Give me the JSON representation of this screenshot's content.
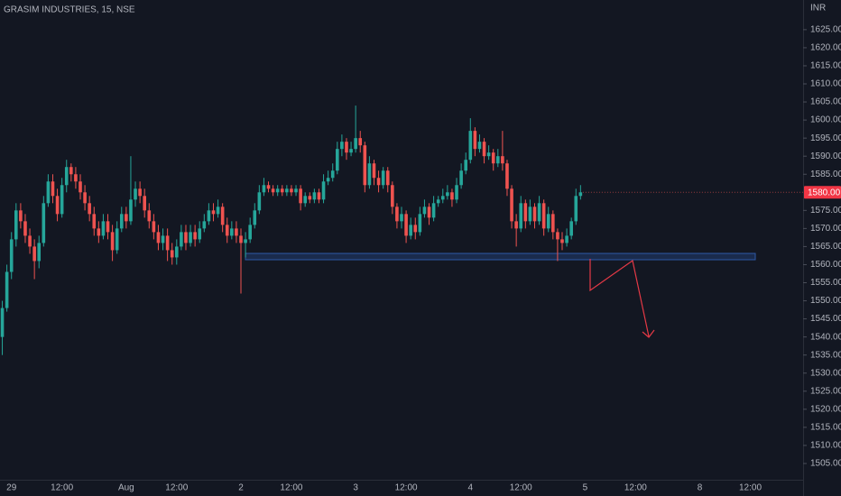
{
  "chart_data": {
    "type": "candlestick",
    "title": "GRASIM INDUSTRIES, 15, NSE",
    "currency": "INR",
    "up_color": "#26a69a",
    "down_color": "#ef5350",
    "last_price": {
      "value": 1580,
      "label": "1580.00"
    },
    "categories": [
      null,
      null,
      "29",
      null,
      null,
      null,
      null,
      null,
      null,
      null,
      null,
      null,
      null,
      "12:00",
      null,
      null,
      null,
      null,
      null,
      null,
      null,
      null,
      null,
      null,
      null,
      null,
      null,
      "Aug",
      null,
      null,
      null,
      null,
      null,
      null,
      null,
      null,
      null,
      null,
      "12:00",
      null,
      null,
      null,
      null,
      null,
      null,
      null,
      null,
      null,
      null,
      null,
      null,
      null,
      "2",
      null,
      null,
      null,
      null,
      null,
      null,
      null,
      null,
      null,
      null,
      "12:00",
      null,
      null,
      null,
      null,
      null,
      null,
      null,
      null,
      null,
      null,
      null,
      null,
      null,
      "3",
      null,
      null,
      null,
      null,
      null,
      null,
      null,
      null,
      null,
      null,
      "12:00",
      null,
      null,
      null,
      null,
      null,
      null,
      null,
      null,
      null,
      null,
      null,
      null,
      null,
      "4",
      null,
      null,
      null,
      null,
      null,
      null,
      null,
      null,
      null,
      null,
      "12:00",
      null,
      null,
      null,
      null,
      null,
      null,
      null,
      null,
      null,
      null,
      null,
      null,
      null,
      "5",
      null,
      null,
      null,
      null,
      null,
      null,
      null,
      null,
      null,
      null,
      "12:00",
      null,
      null,
      null,
      null,
      null,
      null,
      null,
      null,
      null,
      null,
      null,
      null,
      null,
      "8",
      null,
      null,
      null,
      null,
      null,
      null,
      null,
      null,
      null,
      null,
      "12:00",
      null,
      null,
      null,
      null,
      null,
      null,
      null,
      null,
      null,
      null,
      null
    ],
    "open": [
      1540,
      1548,
      1558,
      1567,
      1575,
      1572,
      1568,
      1565,
      1561,
      1566,
      1577,
      1583,
      1579,
      1574,
      1582,
      1587,
      1585,
      1583,
      1580,
      1577,
      1574,
      1570,
      1568,
      1572,
      1569,
      1564,
      1570,
      1574,
      1572,
      1578,
      1581,
      1579,
      1575,
      1572,
      1569,
      1566,
      1568,
      1564,
      1562,
      1565,
      1569,
      1566,
      1569,
      1567,
      1570,
      1572,
      1575,
      1574,
      1576,
      1571,
      1568,
      1570,
      1568,
      1566,
      1567,
      1571,
      1575,
      1580,
      1582,
      1581,
      1580,
      1581,
      1580,
      1581,
      1580,
      1581,
      1577,
      1579,
      1578,
      1580,
      1578,
      1583,
      1584,
      1586,
      1592,
      1594,
      1591,
      1592,
      1595,
      1593,
      1582,
      1588,
      1584,
      1582,
      1586,
      1582,
      1576,
      1572,
      1574,
      1568,
      1571,
      1569,
      1574,
      1576,
      1573,
      1577,
      1578,
      1579,
      1580,
      1578,
      1582,
      1586,
      1589,
      1597,
      1592,
      1594,
      1590,
      1591,
      1588,
      1590,
      1588,
      1581,
      1572,
      1570,
      1577,
      1572,
      1576,
      1572,
      1577,
      1570,
      1574,
      1569,
      1567,
      1566,
      1568,
      1572,
      1579,
      null,
      null,
      null,
      null,
      null,
      null,
      null,
      null,
      null,
      null,
      null,
      null,
      null,
      null,
      null,
      null,
      null,
      null,
      null,
      null,
      null,
      null,
      null,
      null,
      null,
      null,
      null,
      null,
      null,
      null,
      null,
      null,
      null,
      null,
      null,
      null,
      null,
      null,
      null,
      null,
      null,
      null,
      null,
      null,
      null,
      null,
      null,
      null
    ],
    "high": [
      1550,
      1560,
      1569,
      1577,
      1577,
      1574,
      1570,
      1567,
      1568,
      1579,
      1585,
      1585,
      1581,
      1584,
      1589,
      1588,
      1587,
      1585,
      1582,
      1579,
      1576,
      1572,
      1574,
      1574,
      1571,
      1572,
      1576,
      1576,
      1590,
      1583,
      1583,
      1581,
      1577,
      1574,
      1571,
      1570,
      1570,
      1566,
      1567,
      1571,
      1571,
      1571,
      1571,
      1572,
      1574,
      1577,
      1577,
      1578,
      1577,
      1573,
      1572,
      1572,
      1570,
      1569,
      1573,
      1577,
      1582,
      1584,
      1583,
      1582,
      1582,
      1582,
      1582,
      1582,
      1582,
      1582,
      1580,
      1580,
      1581,
      1581,
      1585,
      1586,
      1588,
      1594,
      1596,
      1595,
      1594,
      1604,
      1597,
      1594,
      1590,
      1589,
      1586,
      1587,
      1587,
      1583,
      1577,
      1576,
      1575,
      1573,
      1573,
      1576,
      1578,
      1577,
      1579,
      1579,
      1581,
      1582,
      1581,
      1584,
      1588,
      1591,
      1600.5,
      1598,
      1596,
      1595,
      1593,
      1592,
      1592,
      1597,
      1589,
      1582,
      1574,
      1579,
      1578,
      1578,
      1577,
      1579,
      1578,
      1576,
      1575,
      1570,
      1569,
      1570,
      1573,
      1581,
      1582,
      null,
      null,
      null,
      null,
      null,
      null,
      null,
      null,
      null,
      null,
      null,
      null,
      null,
      null,
      null,
      null,
      null,
      null,
      null,
      null,
      null,
      null,
      null,
      null,
      null,
      null,
      null,
      null,
      null,
      null,
      null,
      null,
      null,
      null,
      null,
      null,
      null,
      null,
      null,
      null,
      null,
      null,
      null,
      null,
      null,
      null,
      null,
      null
    ],
    "low": [
      1535,
      1547,
      1556,
      1565,
      1570,
      1566,
      1563,
      1556,
      1559,
      1565,
      1576,
      1577,
      1572,
      1573,
      1580,
      1583,
      1581,
      1578,
      1575,
      1572,
      1568,
      1566,
      1567,
      1567,
      1561,
      1563,
      1569,
      1570,
      1571,
      1576,
      1577,
      1573,
      1570,
      1567,
      1564,
      1564,
      1561,
      1560,
      1560,
      1564,
      1564,
      1565,
      1565,
      1566,
      1569,
      1571,
      1572,
      1573,
      1569,
      1566,
      1567,
      1566,
      1552,
      1562,
      1566,
      1570,
      1574,
      1579,
      1580,
      1579,
      1579,
      1579,
      1579,
      1579,
      1579,
      1575,
      1576,
      1577,
      1577,
      1577,
      1577,
      1582,
      1583,
      1585,
      1590,
      1589,
      1590,
      1591,
      1591,
      1580,
      1581,
      1582,
      1580,
      1581,
      1580,
      1574,
      1570,
      1570,
      1566,
      1567,
      1567,
      1568,
      1573,
      1571,
      1572,
      1576,
      1577,
      1578,
      1576,
      1577,
      1581,
      1585,
      1588,
      1590,
      1591,
      1588,
      1589,
      1586,
      1587,
      1586,
      1579,
      1570,
      1565,
      1569,
      1570,
      1571,
      1570,
      1571,
      1568,
      1569,
      1567,
      1561,
      1564,
      1565,
      1567,
      1571,
      1578,
      null,
      null,
      null,
      null,
      null,
      null,
      null,
      null,
      null,
      null,
      null,
      null,
      null,
      null,
      null,
      null,
      null,
      null,
      null,
      null,
      null,
      null,
      null,
      null,
      null,
      null,
      null,
      null,
      null,
      null,
      null,
      null,
      null,
      null,
      null,
      null,
      null,
      null,
      null,
      null,
      null,
      null,
      null,
      null,
      null,
      null,
      null,
      null
    ],
    "close": [
      1548,
      1558,
      1567,
      1575,
      1572,
      1568,
      1565,
      1561,
      1566,
      1577,
      1583,
      1579,
      1574,
      1582,
      1587,
      1585,
      1583,
      1580,
      1577,
      1574,
      1570,
      1568,
      1572,
      1569,
      1564,
      1570,
      1574,
      1572,
      1578,
      1581,
      1579,
      1575,
      1572,
      1569,
      1566,
      1568,
      1564,
      1562,
      1565,
      1569,
      1566,
      1569,
      1567,
      1570,
      1572,
      1575,
      1574,
      1576,
      1571,
      1568,
      1570,
      1568,
      1566,
      1567,
      1571,
      1575,
      1580,
      1582,
      1581,
      1580,
      1581,
      1580,
      1581,
      1580,
      1581,
      1577,
      1579,
      1578,
      1580,
      1578,
      1583,
      1584,
      1586,
      1592,
      1594,
      1591,
      1592,
      1595,
      1593,
      1582,
      1588,
      1584,
      1582,
      1586,
      1582,
      1576,
      1572,
      1574,
      1568,
      1571,
      1569,
      1574,
      1576,
      1573,
      1577,
      1578,
      1579,
      1580,
      1578,
      1582,
      1586,
      1589,
      1597,
      1592,
      1594,
      1590,
      1591,
      1588,
      1590,
      1588,
      1581,
      1572,
      1570,
      1577,
      1572,
      1576,
      1572,
      1577,
      1570,
      1574,
      1569,
      1567,
      1566,
      1568,
      1572,
      1579,
      1580,
      null,
      null,
      null,
      null,
      null,
      null,
      null,
      null,
      null,
      null,
      null,
      null,
      null,
      null,
      null,
      null,
      null,
      null,
      null,
      null,
      null,
      null,
      null,
      null,
      null,
      null,
      null,
      null,
      null,
      null,
      null,
      null,
      null,
      null,
      null,
      null,
      null,
      null,
      null,
      null,
      null,
      null,
      null,
      null,
      null,
      null,
      null,
      null
    ],
    "ylim": [
      1500.5,
      1633.2
    ],
    "yticks": [
      {
        "value": 1505,
        "label": "1505.00"
      },
      {
        "value": 1510,
        "label": "1510.00"
      },
      {
        "value": 1515,
        "label": "1515.00"
      },
      {
        "value": 1520,
        "label": "1520.00"
      },
      {
        "value": 1525,
        "label": "1525.00"
      },
      {
        "value": 1530,
        "label": "1530.00"
      },
      {
        "value": 1535,
        "label": "1535.00"
      },
      {
        "value": 1540,
        "label": "1540.00"
      },
      {
        "value": 1545,
        "label": "1545.00"
      },
      {
        "value": 1550,
        "label": "1550.00"
      },
      {
        "value": 1555,
        "label": "1555.00"
      },
      {
        "value": 1560,
        "label": "1560.00"
      },
      {
        "value": 1565,
        "label": "1565.00"
      },
      {
        "value": 1570,
        "label": "1570.00"
      },
      {
        "value": 1575,
        "label": "1575.00"
      },
      {
        "value": 1585,
        "label": "1585.00"
      },
      {
        "value": 1590,
        "label": "1590.00"
      },
      {
        "value": 1595,
        "label": "1595.00"
      },
      {
        "value": 1600,
        "label": "1600.00"
      },
      {
        "value": 1605,
        "label": "1605.00"
      },
      {
        "value": 1610,
        "label": "1610.00"
      },
      {
        "value": 1615,
        "label": "1615.00"
      },
      {
        "value": 1620,
        "label": "1620.00"
      },
      {
        "value": 1625,
        "label": "1625.00"
      }
    ]
  }
}
